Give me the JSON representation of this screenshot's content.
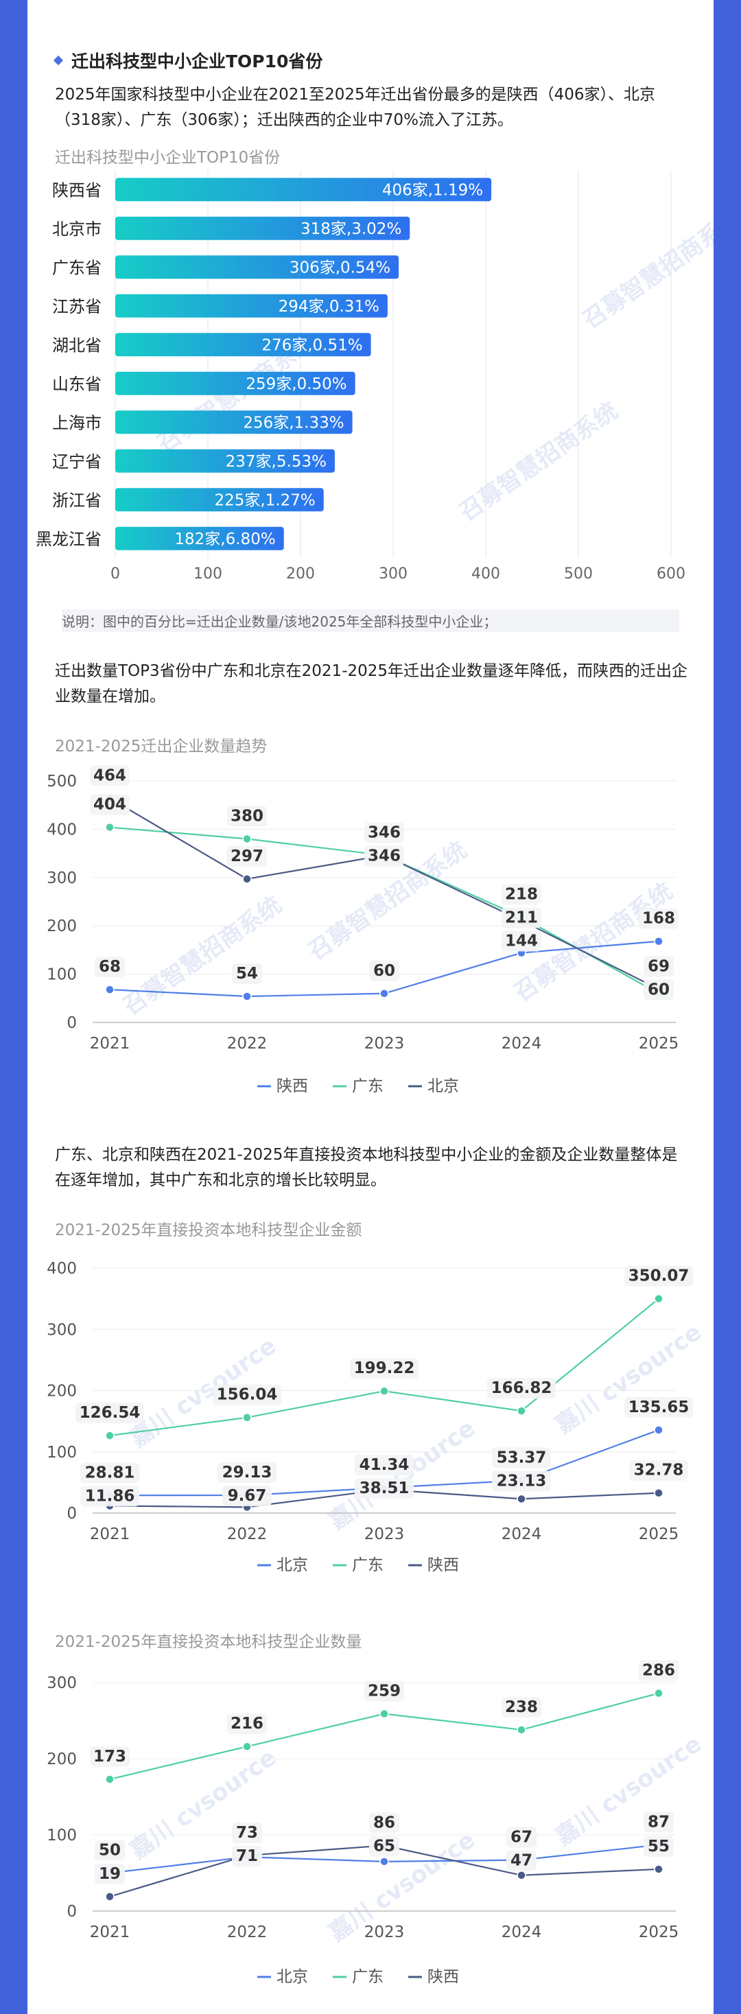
{
  "section": {
    "title": "迁出科技型中小企业TOP10省份"
  },
  "intro": "2025年国家科技型中小企业在2021至2025年迁出省份最多的是陕西（406家）、北京（318家）、广东（306家）；迁出陕西的企业中70%流入了江苏。",
  "note": "说明：图中的百分比=迁出企业数量/该地2025年全部科技型中小企业；",
  "para2": "迁出数量TOP3省份中广东和北京在2021-2025年迁出企业数量逐年降低，而陕西的迁出企业数量在增加。",
  "para3": "广东、北京和陕西在2021-2025年直接投资本地科技型中小企业的金额及企业数量整体是在逐年增加，其中广东和北京的增长比较明显。",
  "watermarks": [
    "召募智慧招商系统",
    "嘉川 cvsource"
  ],
  "colors": {
    "bar_start": "#16cdc6",
    "bar_end": "#2e6ff0",
    "shaanxi": "#4f7ee8",
    "guangdong": "#4ecfa0",
    "beijing": "#4a5a86"
  },
  "chart_data": [
    {
      "type": "bar",
      "orientation": "horizontal",
      "title": "迁出科技型中小企业TOP10省份",
      "categories": [
        "陕西省",
        "北京市",
        "广东省",
        "江苏省",
        "湖北省",
        "山东省",
        "上海市",
        "辽宁省",
        "浙江省",
        "黑龙江省"
      ],
      "values": [
        406,
        318,
        306,
        294,
        276,
        259,
        256,
        237,
        225,
        182
      ],
      "labels": [
        "406家,1.19%",
        "318家,3.02%",
        "306家,0.54%",
        "294家,0.31%",
        "276家,0.51%",
        "259家,0.50%",
        "256家,1.33%",
        "237家,5.53%",
        "225家,1.27%",
        "182家,6.80%"
      ],
      "xlim": [
        0,
        600
      ],
      "xticks": [
        0,
        100,
        200,
        300,
        400,
        500,
        600
      ],
      "grid": true
    },
    {
      "type": "line",
      "title": "2021-2025迁出企业数量趋势",
      "x": [
        "2021",
        "2022",
        "2023",
        "2024",
        "2025"
      ],
      "ylim": [
        0,
        500
      ],
      "yticks": [
        0,
        100,
        200,
        300,
        400,
        500
      ],
      "legend": "bottom",
      "series": [
        {
          "name": "陕西",
          "color": "#4f7ee8",
          "values": [
            68,
            54,
            60,
            144,
            168
          ]
        },
        {
          "name": "广东",
          "color": "#4ecfa0",
          "values": [
            404,
            380,
            346,
            218,
            60
          ]
        },
        {
          "name": "北京",
          "color": "#4a5a86",
          "values": [
            464,
            297,
            346,
            211,
            69
          ]
        }
      ]
    },
    {
      "type": "line",
      "title": "2021-2025年直接投资本地科技型企业金额",
      "x": [
        "2021",
        "2022",
        "2023",
        "2024",
        "2025"
      ],
      "ylim": [
        0,
        400
      ],
      "yticks": [
        0,
        100,
        200,
        300,
        400
      ],
      "legend": "bottom",
      "series": [
        {
          "name": "北京",
          "color": "#4f7ee8",
          "values": [
            28.81,
            29.13,
            41.34,
            53.37,
            135.65
          ]
        },
        {
          "name": "广东",
          "color": "#4ecfa0",
          "values": [
            126.54,
            156.04,
            199.22,
            166.82,
            350.07
          ]
        },
        {
          "name": "陕西",
          "color": "#4a5a86",
          "values": [
            11.86,
            9.67,
            38.51,
            23.13,
            32.78
          ]
        }
      ]
    },
    {
      "type": "line",
      "title": "2021-2025年直接投资本地科技型企业数量",
      "x": [
        "2021",
        "2022",
        "2023",
        "2024",
        "2025"
      ],
      "ylim": [
        0,
        300
      ],
      "yticks": [
        0,
        100,
        200,
        300
      ],
      "legend": "bottom",
      "series": [
        {
          "name": "北京",
          "color": "#4f7ee8",
          "values": [
            50,
            71,
            65,
            67,
            87
          ]
        },
        {
          "name": "广东",
          "color": "#4ecfa0",
          "values": [
            173,
            216,
            259,
            238,
            286
          ]
        },
        {
          "name": "陕西",
          "color": "#4a5a86",
          "values": [
            19,
            73,
            86,
            47,
            55
          ]
        }
      ]
    }
  ]
}
